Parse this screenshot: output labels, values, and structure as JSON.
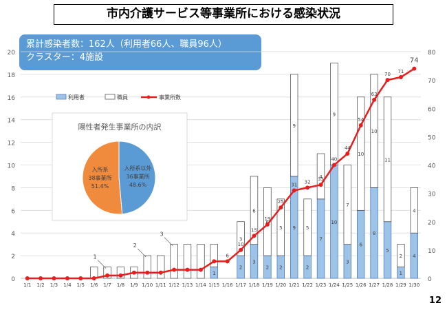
{
  "title": "市内介護サービス等事業所における感染状況",
  "summary": {
    "line1": "累計感染者数：162人（利用者66人、職員96人）",
    "line2": "クラスター：4施設"
  },
  "page_number": "12",
  "colors": {
    "users_bar": "#9dc3e6",
    "users_bar_edge": "#4472c4",
    "staff_bar": "#ffffff",
    "staff_bar_edge": "#404040",
    "line": "#e61e1e",
    "pie_left": "#f08a3c",
    "pie_right": "#5b9bd5",
    "summary_box": "#5b9bd5"
  },
  "chart_data": [
    {
      "type": "bar",
      "stacked": true,
      "categories": [
        "1/1",
        "1/2",
        "1/3",
        "1/4",
        "1/5",
        "1/6",
        "1/7",
        "1/8",
        "1/9",
        "1/10",
        "1/11",
        "1/12",
        "1/13",
        "1/14",
        "1/15",
        "1/16",
        "1/17",
        "1/18",
        "1/19",
        "1/20",
        "1/21",
        "1/22",
        "1/23",
        "1/24",
        "1/25",
        "1/26",
        "1/27",
        "1/28",
        "1/29",
        "1/30"
      ],
      "series": [
        {
          "name": "利用者",
          "axis": "left",
          "values": [
            0,
            0,
            0,
            0,
            0,
            0,
            0,
            0,
            0,
            0,
            0,
            0,
            0,
            0,
            1,
            0,
            2,
            3,
            2,
            2,
            9,
            2,
            7,
            10,
            3,
            6,
            8,
            5,
            1,
            4
          ]
        },
        {
          "name": "職員",
          "axis": "left",
          "values": [
            0,
            0,
            0,
            0,
            0,
            1,
            1,
            1,
            1,
            2,
            2,
            3,
            3,
            3,
            2,
            0,
            3,
            6,
            6,
            5,
            9,
            5,
            4,
            9,
            7,
            10,
            10,
            11,
            2,
            4
          ]
        },
        {
          "name": "事業所数",
          "axis": "right",
          "type": "line",
          "values": [
            0,
            0,
            0,
            0,
            0,
            0,
            1,
            1,
            2,
            2,
            2,
            3,
            3,
            3,
            6,
            6,
            10,
            15,
            19,
            25,
            31,
            32,
            33,
            40,
            44,
            54,
            63,
            70,
            71,
            74
          ]
        }
      ],
      "bar_labels": [
        {
          "category": "1/7",
          "text": "1"
        },
        {
          "category": "1/10",
          "text": "2"
        },
        {
          "category": "1/12",
          "text": "3"
        }
      ],
      "bar_label_texts": [
        "1",
        "1",
        "2",
        "2",
        "3",
        "3",
        "6",
        "0"
      ],
      "ylim_left": [
        0,
        20
      ],
      "yticks_left": [
        0,
        2,
        4,
        6,
        8,
        10,
        12,
        14,
        16,
        18,
        20
      ],
      "ylim_right": [
        0,
        80
      ],
      "yticks_right": [
        0,
        10,
        20,
        30,
        40,
        50,
        60,
        70,
        80
      ],
      "legend": [
        "利用者",
        "職員",
        "事業所数"
      ],
      "legend_position": "upper-left",
      "grid": true
    },
    {
      "type": "pie",
      "title": "陽性者発生事業所の内訳",
      "slices": [
        {
          "label_line1": "入所系以外",
          "label_line2": "36事業所",
          "pct_text": "48.6%",
          "value": 48.6
        },
        {
          "label_line1": "入所系",
          "label_line2": "38事業所",
          "pct_text": "51.4%",
          "value": 51.4
        }
      ]
    }
  ]
}
